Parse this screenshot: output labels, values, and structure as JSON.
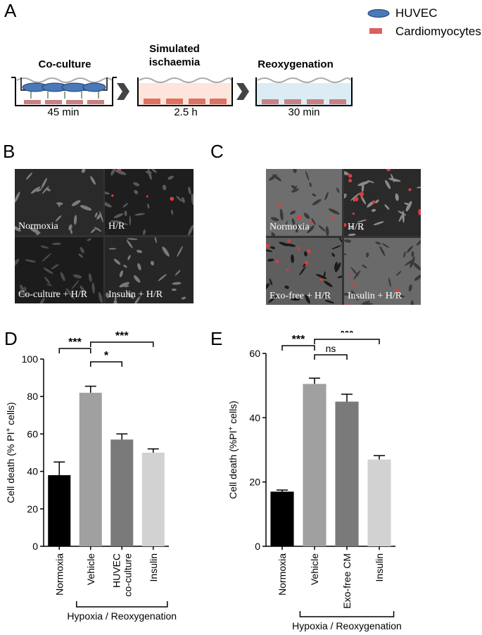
{
  "panel_labels": {
    "a": "A",
    "b": "B",
    "c": "C",
    "d": "D",
    "e": "E"
  },
  "legend": {
    "huvec": "HUVEC",
    "cardiomyocytes": "Cardiomyocytes",
    "colors": {
      "huvec": "#4a78b8",
      "cardiomyocytes": "#d9605e"
    }
  },
  "protocol": {
    "steps": [
      {
        "title": "Co-culture",
        "time": "45 min"
      },
      {
        "title": "Simulated ischaemia",
        "time": "2.5 h"
      },
      {
        "title": "Reoxygenation",
        "time": "30 min"
      }
    ]
  },
  "panel_b": {
    "labels": [
      "Normoxia",
      "H/R",
      "Co-culture + H/R",
      "Insulin + H/R"
    ]
  },
  "panel_c": {
    "labels": [
      "Normoxia",
      "H/R",
      "Exo-free + H/R",
      "Insulin + H/R"
    ]
  },
  "chart_data": [
    {
      "type": "bar",
      "panel": "D",
      "ylabel": "Cell death (% PI+ cells)",
      "ylim": [
        0,
        100
      ],
      "yticks": [
        0,
        20,
        40,
        60,
        80,
        100
      ],
      "categories": [
        "Normoxia",
        "Vehicle",
        "HUVEC co-culture",
        "Insulin"
      ],
      "values": [
        38,
        82,
        57,
        50
      ],
      "errors": [
        7,
        3.5,
        3,
        2
      ],
      "colors": [
        "#000000",
        "#a0a0a0",
        "#7a7a7a",
        "#d2d2d2"
      ],
      "group_label": "Hypoxia / Reoxygenation",
      "significance": [
        {
          "from": 0,
          "to": 1,
          "label": "***"
        },
        {
          "from": 1,
          "to": 2,
          "label": "*"
        },
        {
          "from": 1,
          "to": 3,
          "label": "***"
        }
      ]
    },
    {
      "type": "bar",
      "panel": "E",
      "ylabel": "Cell death (%PI+ cells)",
      "ylim": [
        0,
        60
      ],
      "yticks": [
        0,
        20,
        40,
        60
      ],
      "categories": [
        "Normoxia",
        "Vehicle",
        "Exo-free CM",
        "Insulin"
      ],
      "values": [
        17,
        50.5,
        45,
        27
      ],
      "errors": [
        0.5,
        1.8,
        2.3,
        1.2
      ],
      "colors": [
        "#000000",
        "#a0a0a0",
        "#7a7a7a",
        "#d2d2d2"
      ],
      "group_label": "Hypoxia / Reoxygenation",
      "significance": [
        {
          "from": 0,
          "to": 1,
          "label": "***"
        },
        {
          "from": 1,
          "to": 2,
          "label": "ns"
        },
        {
          "from": 1,
          "to": 3,
          "label": "***"
        }
      ]
    }
  ]
}
